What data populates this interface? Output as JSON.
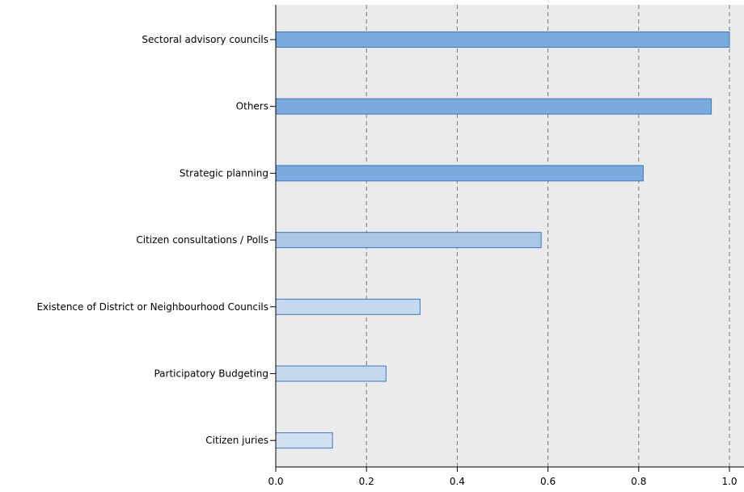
{
  "chart_data": {
    "type": "bar",
    "orientation": "horizontal",
    "categories": [
      "Sectoral advisory councils",
      "Others",
      "Strategic planning",
      "Citizen consultations / Polls",
      "Existence of District or Neighbourhood Councils",
      "Participatory Budgeting",
      "Citizen juries"
    ],
    "values": [
      1.0,
      0.96,
      0.81,
      0.585,
      0.318,
      0.243,
      0.125
    ],
    "xlim": [
      0,
      1.0
    ],
    "xticks": [
      "0.0",
      "0.2",
      "0.4",
      "0.6",
      "0.8",
      "1.0"
    ],
    "grid": "vertical dashed",
    "bar_colors": [
      "#7aaade",
      "#7aaade",
      "#7aaade",
      "#a9c8e8",
      "#c5d8ee",
      "#c5d8ee",
      "#d0dff0"
    ],
    "bar_edge_color": "#3a78c2",
    "plot_background": "#ebebeb"
  }
}
